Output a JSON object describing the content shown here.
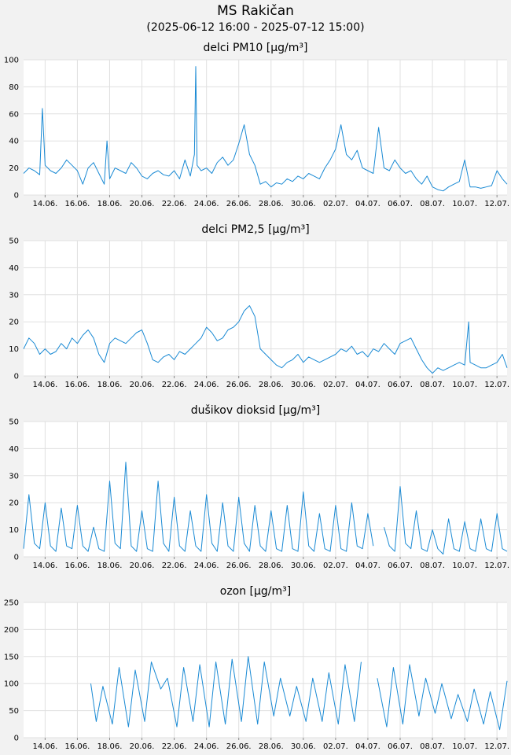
{
  "header": {
    "title": "MS Rakičan",
    "period": "(2025-06-12 16:00 - 2025-07-12 15:00)"
  },
  "colors": {
    "series": "#1a8ad4",
    "grid": "#e0e0e0",
    "plot_bg": "#ffffff"
  },
  "chart_data": [
    {
      "type": "line",
      "title": "delci PM10 [µg/m³]",
      "xlim": [
        "2025-06-12 16:00",
        "2025-07-12 15:00"
      ],
      "ylim": [
        0,
        100
      ],
      "yticks": [
        0,
        20,
        40,
        60,
        80,
        100
      ],
      "xticks": [
        "14.06.",
        "16.06.",
        "18.06.",
        "20.06.",
        "22.06.",
        "24.06.",
        "26.06.",
        "28.06.",
        "30.06.",
        "02.07.",
        "04.07.",
        "06.07.",
        "08.07.",
        "10.07.",
        "12.07."
      ],
      "grid": true,
      "series": [
        {
          "x": [
            "2025-06-12 16:00",
            "2025-06-13 00:00",
            "2025-06-13 08:00",
            "2025-06-13 16:00",
            "2025-06-13 20:00",
            "2025-06-14 00:00",
            "2025-06-14 08:00",
            "2025-06-14 16:00",
            "2025-06-14 20:00",
            "2025-06-15 00:00",
            "2025-06-15 08:00",
            "2025-06-15 16:00",
            "2025-06-16 00:00",
            "2025-06-16 08:00",
            "2025-06-16 16:00",
            "2025-06-17 00:00",
            "2025-06-17 08:00",
            "2025-06-17 16:00",
            "2025-06-17 20:00",
            "2025-06-18 00:00",
            "2025-06-18 08:00",
            "2025-06-18 16:00",
            "2025-06-19 00:00",
            "2025-06-19 08:00",
            "2025-06-19 16:00",
            "2025-06-20 00:00",
            "2025-06-20 08:00",
            "2025-06-20 16:00",
            "2025-06-21 00:00",
            "2025-06-21 08:00",
            "2025-06-21 16:00",
            "2025-06-22 00:00",
            "2025-06-22 08:00",
            "2025-06-22 16:00",
            "2025-06-23 00:00",
            "2025-06-23 06:00",
            "2025-06-23 08:00",
            "2025-06-23 10:00",
            "2025-06-23 16:00",
            "2025-06-24 00:00",
            "2025-06-24 08:00",
            "2025-06-24 16:00",
            "2025-06-25 00:00",
            "2025-06-25 08:00",
            "2025-06-25 16:00",
            "2025-06-26 00:00",
            "2025-06-26 08:00",
            "2025-06-26 16:00",
            "2025-06-27 00:00",
            "2025-06-27 08:00",
            "2025-06-27 16:00",
            "2025-06-28 00:00",
            "2025-06-28 08:00",
            "2025-06-28 16:00",
            "2025-06-29 00:00",
            "2025-06-29 08:00",
            "2025-06-29 16:00",
            "2025-06-30 00:00",
            "2025-06-30 08:00",
            "2025-06-30 16:00",
            "2025-07-01 00:00",
            "2025-07-01 08:00",
            "2025-07-01 16:00",
            "2025-07-02 00:00",
            "2025-07-02 08:00",
            "2025-07-02 16:00",
            "2025-07-03 00:00",
            "2025-07-03 08:00",
            "2025-07-03 16:00",
            "2025-07-04 00:00",
            "2025-07-04 08:00",
            "2025-07-04 16:00",
            "2025-07-05 00:00",
            "2025-07-05 08:00",
            "2025-07-05 16:00",
            "2025-07-06 00:00",
            "2025-07-06 08:00",
            "2025-07-06 16:00",
            "2025-07-07 00:00",
            "2025-07-07 08:00",
            "2025-07-07 16:00",
            "2025-07-08 00:00",
            "2025-07-08 08:00",
            "2025-07-08 16:00",
            "2025-07-09 00:00",
            "2025-07-09 08:00",
            "2025-07-09 16:00",
            "2025-07-10 00:00",
            "2025-07-10 08:00",
            "2025-07-10 16:00",
            "2025-07-11 00:00",
            "2025-07-11 08:00",
            "2025-07-11 16:00",
            "2025-07-12 00:00",
            "2025-07-12 08:00",
            "2025-07-12 15:00"
          ],
          "y": [
            16,
            20,
            18,
            15,
            64,
            22,
            18,
            16,
            18,
            20,
            26,
            22,
            18,
            8,
            20,
            24,
            16,
            8,
            40,
            12,
            20,
            18,
            16,
            24,
            20,
            14,
            12,
            16,
            18,
            15,
            14,
            18,
            12,
            26,
            14,
            30,
            95,
            22,
            18,
            20,
            16,
            24,
            28,
            22,
            26,
            38,
            52,
            30,
            22,
            8,
            10,
            6,
            9,
            8,
            12,
            10,
            14,
            12,
            16,
            14,
            12,
            20,
            26,
            34,
            52,
            30,
            26,
            33,
            20,
            18,
            16,
            50,
            20,
            18,
            26,
            20,
            16,
            18,
            12,
            8,
            14,
            6,
            4,
            3,
            6,
            8,
            10,
            26,
            6,
            6,
            5,
            6,
            7,
            18,
            12,
            8
          ]
        }
      ]
    },
    {
      "type": "line",
      "title": "delci PM2,5 [µg/m³]",
      "xlim": [
        "2025-06-12 16:00",
        "2025-07-12 15:00"
      ],
      "ylim": [
        0,
        50
      ],
      "yticks": [
        0,
        10,
        20,
        30,
        40,
        50
      ],
      "xticks": [
        "14.06.",
        "16.06.",
        "18.06.",
        "20.06.",
        "22.06.",
        "24.06.",
        "26.06.",
        "28.06.",
        "30.06.",
        "02.07.",
        "04.07.",
        "06.07.",
        "08.07.",
        "10.07.",
        "12.07."
      ],
      "grid": true,
      "series": [
        {
          "x": [
            "2025-06-12 16:00",
            "2025-06-13 00:00",
            "2025-06-13 08:00",
            "2025-06-13 16:00",
            "2025-06-14 00:00",
            "2025-06-14 08:00",
            "2025-06-14 16:00",
            "2025-06-15 00:00",
            "2025-06-15 08:00",
            "2025-06-15 16:00",
            "2025-06-16 00:00",
            "2025-06-16 08:00",
            "2025-06-16 16:00",
            "2025-06-17 00:00",
            "2025-06-17 08:00",
            "2025-06-17 16:00",
            "2025-06-18 00:00",
            "2025-06-18 08:00",
            "2025-06-18 16:00",
            "2025-06-19 00:00",
            "2025-06-19 08:00",
            "2025-06-19 16:00",
            "2025-06-20 00:00",
            "2025-06-20 08:00",
            "2025-06-20 16:00",
            "2025-06-21 00:00",
            "2025-06-21 08:00",
            "2025-06-21 16:00",
            "2025-06-22 00:00",
            "2025-06-22 08:00",
            "2025-06-22 16:00",
            "2025-06-23 00:00",
            "2025-06-23 08:00",
            "2025-06-23 16:00",
            "2025-06-24 00:00",
            "2025-06-24 08:00",
            "2025-06-24 16:00",
            "2025-06-25 00:00",
            "2025-06-25 08:00",
            "2025-06-25 16:00",
            "2025-06-26 00:00",
            "2025-06-26 08:00",
            "2025-06-26 16:00",
            "2025-06-27 00:00",
            "2025-06-27 08:00",
            "2025-06-27 16:00",
            "2025-06-28 00:00",
            "2025-06-28 08:00",
            "2025-06-28 16:00",
            "2025-06-29 00:00",
            "2025-06-29 08:00",
            "2025-06-29 16:00",
            "2025-06-30 00:00",
            "2025-06-30 08:00",
            "2025-06-30 16:00",
            "2025-07-01 00:00",
            "2025-07-01 08:00",
            "2025-07-01 16:00",
            "2025-07-02 00:00",
            "2025-07-02 08:00",
            "2025-07-02 16:00",
            "2025-07-03 00:00",
            "2025-07-03 08:00",
            "2025-07-03 16:00",
            "2025-07-04 00:00",
            "2025-07-04 08:00",
            "2025-07-04 16:00",
            "2025-07-05 00:00",
            "2025-07-05 08:00",
            "2025-07-05 16:00",
            "2025-07-06 00:00",
            "2025-07-06 08:00",
            "2025-07-06 16:00",
            "2025-07-07 00:00",
            "2025-07-07 08:00",
            "2025-07-07 16:00",
            "2025-07-08 00:00",
            "2025-07-08 08:00",
            "2025-07-08 16:00",
            "2025-07-09 00:00",
            "2025-07-09 08:00",
            "2025-07-09 16:00",
            "2025-07-10 00:00",
            "2025-07-10 06:00",
            "2025-07-10 08:00",
            "2025-07-10 16:00",
            "2025-07-11 00:00",
            "2025-07-11 08:00",
            "2025-07-11 16:00",
            "2025-07-12 00:00",
            "2025-07-12 08:00",
            "2025-07-12 15:00"
          ],
          "y": [
            10,
            14,
            12,
            8,
            10,
            8,
            9,
            12,
            10,
            14,
            12,
            15,
            17,
            14,
            8,
            5,
            12,
            14,
            13,
            12,
            14,
            16,
            17,
            12,
            6,
            5,
            7,
            8,
            6,
            9,
            8,
            10,
            12,
            14,
            18,
            16,
            13,
            14,
            17,
            18,
            20,
            24,
            26,
            22,
            10,
            8,
            6,
            4,
            3,
            5,
            6,
            8,
            5,
            7,
            6,
            5,
            6,
            7,
            8,
            10,
            9,
            11,
            8,
            9,
            7,
            10,
            9,
            12,
            10,
            8,
            12,
            13,
            14,
            10,
            6,
            3,
            1,
            3,
            2,
            3,
            4,
            5,
            4,
            20,
            5,
            4,
            3,
            3,
            4,
            5,
            8,
            3
          ]
        }
      ]
    },
    {
      "type": "line",
      "title": "dušikov dioksid [µg/m³]",
      "xlim": [
        "2025-06-12 16:00",
        "2025-07-12 15:00"
      ],
      "ylim": [
        0,
        50
      ],
      "yticks": [
        0,
        10,
        20,
        30,
        40,
        50
      ],
      "xticks": [
        "14.06.",
        "16.06.",
        "18.06.",
        "20.06.",
        "22.06.",
        "24.06.",
        "26.06.",
        "28.06.",
        "30.06.",
        "02.07.",
        "04.07.",
        "06.07.",
        "08.07.",
        "10.07.",
        "12.07."
      ],
      "grid": true,
      "series": [
        {
          "x": [
            "2025-06-12 16:00",
            "2025-06-13 00:00",
            "2025-06-13 08:00",
            "2025-06-13 16:00",
            "2025-06-14 00:00",
            "2025-06-14 08:00",
            "2025-06-14 16:00",
            "2025-06-15 00:00",
            "2025-06-15 08:00",
            "2025-06-15 16:00",
            "2025-06-16 00:00",
            "2025-06-16 08:00",
            "2025-06-16 16:00",
            "2025-06-17 00:00",
            "2025-06-17 08:00",
            "2025-06-17 16:00",
            "2025-06-18 00:00",
            "2025-06-18 08:00",
            "2025-06-18 16:00",
            "2025-06-19 00:00",
            "2025-06-19 08:00",
            "2025-06-19 16:00",
            "2025-06-20 00:00",
            "2025-06-20 08:00",
            "2025-06-20 16:00",
            "2025-06-21 00:00",
            "2025-06-21 08:00",
            "2025-06-21 16:00",
            "2025-06-22 00:00",
            "2025-06-22 08:00",
            "2025-06-22 16:00",
            "2025-06-23 00:00",
            "2025-06-23 08:00",
            "2025-06-23 16:00",
            "2025-06-24 00:00",
            "2025-06-24 08:00",
            "2025-06-24 16:00",
            "2025-06-25 00:00",
            "2025-06-25 08:00",
            "2025-06-25 16:00",
            "2025-06-26 00:00",
            "2025-06-26 08:00",
            "2025-06-26 16:00",
            "2025-06-27 00:00",
            "2025-06-27 08:00",
            "2025-06-27 16:00",
            "2025-06-28 00:00",
            "2025-06-28 08:00",
            "2025-06-28 16:00",
            "2025-06-29 00:00",
            "2025-06-29 08:00",
            "2025-06-29 16:00",
            "2025-06-30 00:00",
            "2025-06-30 08:00",
            "2025-06-30 16:00",
            "2025-07-01 00:00",
            "2025-07-01 08:00",
            "2025-07-01 16:00",
            "2025-07-02 00:00",
            "2025-07-02 08:00",
            "2025-07-02 16:00",
            "2025-07-03 00:00",
            "2025-07-03 08:00",
            "2025-07-03 16:00",
            "2025-07-04 00:00",
            "2025-07-04 08:00",
            null,
            "2025-07-05 00:00",
            "2025-07-05 08:00",
            "2025-07-05 16:00",
            "2025-07-06 00:00",
            "2025-07-06 08:00",
            "2025-07-06 16:00",
            "2025-07-07 00:00",
            "2025-07-07 08:00",
            "2025-07-07 16:00",
            "2025-07-08 00:00",
            "2025-07-08 08:00",
            "2025-07-08 16:00",
            "2025-07-09 00:00",
            "2025-07-09 08:00",
            "2025-07-09 16:00",
            "2025-07-10 00:00",
            "2025-07-10 08:00",
            "2025-07-10 16:00",
            "2025-07-11 00:00",
            "2025-07-11 08:00",
            "2025-07-11 16:00",
            "2025-07-12 00:00",
            "2025-07-12 08:00",
            "2025-07-12 15:00"
          ],
          "y": [
            3,
            23,
            5,
            3,
            20,
            4,
            2,
            18,
            4,
            3,
            19,
            4,
            2,
            11,
            3,
            2,
            28,
            5,
            3,
            35,
            4,
            2,
            17,
            3,
            2,
            28,
            5,
            2,
            22,
            4,
            2,
            17,
            4,
            2,
            23,
            5,
            2,
            20,
            4,
            2,
            22,
            5,
            2,
            19,
            4,
            2,
            17,
            3,
            2,
            19,
            3,
            2,
            24,
            4,
            2,
            16,
            3,
            2,
            19,
            3,
            2,
            20,
            4,
            3,
            16,
            4,
            null,
            11,
            4,
            2,
            26,
            5,
            3,
            17,
            3,
            2,
            10,
            3,
            1,
            14,
            3,
            2,
            13,
            3,
            2,
            14,
            3,
            2,
            16,
            3,
            2
          ]
        }
      ]
    },
    {
      "type": "line",
      "title": "ozon [µg/m³]",
      "xlim": [
        "2025-06-12 16:00",
        "2025-07-12 15:00"
      ],
      "ylim": [
        0,
        250
      ],
      "yticks": [
        0,
        50,
        100,
        150,
        200,
        250
      ],
      "xticks": [
        "14.06.",
        "16.06.",
        "18.06.",
        "20.06.",
        "22.06.",
        "24.06.",
        "26.06.",
        "28.06.",
        "30.06.",
        "02.07.",
        "04.07.",
        "06.07.",
        "08.07.",
        "10.07.",
        "12.07."
      ],
      "grid": true,
      "series": [
        {
          "x": [
            "2025-06-16 20:00",
            "2025-06-17 04:00",
            "2025-06-17 14:00",
            "2025-06-18 04:00",
            "2025-06-18 14:00",
            "2025-06-19 04:00",
            "2025-06-19 14:00",
            "2025-06-20 04:00",
            "2025-06-20 14:00",
            "2025-06-21 04:00",
            "2025-06-21 14:00",
            "2025-06-22 04:00",
            "2025-06-22 14:00",
            "2025-06-23 04:00",
            "2025-06-23 14:00",
            "2025-06-24 04:00",
            "2025-06-24 14:00",
            "2025-06-25 04:00",
            "2025-06-25 14:00",
            "2025-06-26 04:00",
            "2025-06-26 14:00",
            "2025-06-27 04:00",
            "2025-06-27 14:00",
            "2025-06-28 04:00",
            "2025-06-28 14:00",
            "2025-06-29 04:00",
            "2025-06-29 14:00",
            "2025-06-30 04:00",
            "2025-06-30 14:00",
            "2025-07-01 04:00",
            "2025-07-01 14:00",
            "2025-07-02 04:00",
            "2025-07-02 14:00",
            "2025-07-03 04:00",
            "2025-07-03 14:00",
            null,
            "2025-07-04 14:00",
            "2025-07-05 04:00",
            "2025-07-05 14:00",
            "2025-07-06 04:00",
            "2025-07-06 14:00",
            "2025-07-07 04:00",
            "2025-07-07 14:00",
            "2025-07-08 04:00",
            "2025-07-08 14:00",
            "2025-07-09 04:00",
            "2025-07-09 14:00",
            "2025-07-10 04:00",
            "2025-07-10 14:00",
            "2025-07-11 04:00",
            "2025-07-11 14:00",
            "2025-07-12 04:00",
            "2025-07-12 15:00"
          ],
          "y": [
            100,
            30,
            95,
            25,
            130,
            20,
            125,
            30,
            140,
            90,
            110,
            20,
            130,
            30,
            135,
            20,
            140,
            25,
            145,
            30,
            150,
            25,
            140,
            40,
            110,
            40,
            95,
            30,
            110,
            30,
            120,
            25,
            135,
            30,
            140,
            null,
            110,
            20,
            130,
            25,
            135,
            40,
            110,
            45,
            100,
            35,
            80,
            30,
            90,
            25,
            85,
            15,
            105
          ]
        }
      ]
    }
  ]
}
